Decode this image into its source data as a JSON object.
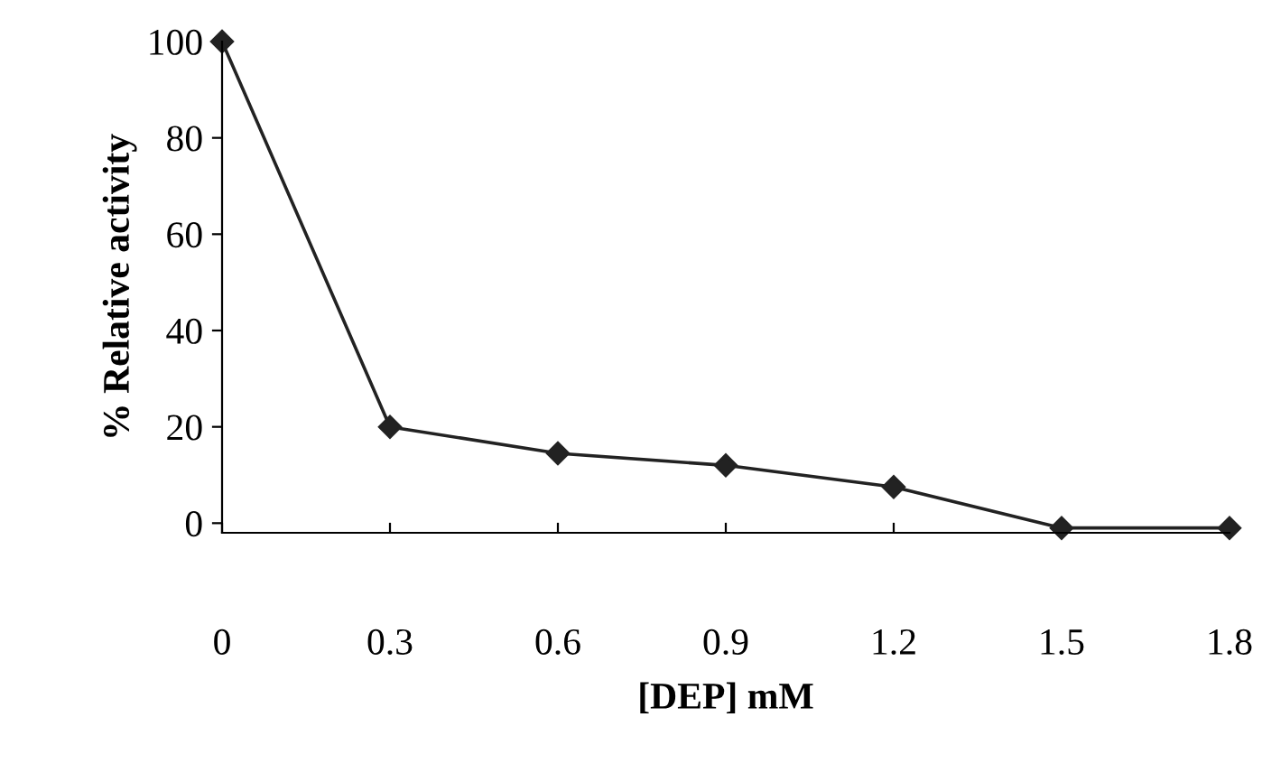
{
  "chart_data": {
    "type": "line",
    "xlabel": "[DEP] mM",
    "ylabel": "% Relative activity",
    "x": [
      0,
      0.3,
      0.6,
      0.9,
      1.2,
      1.5,
      1.8
    ],
    "series": [
      {
        "color": "#222222",
        "values": [
          100,
          20,
          14.5,
          12,
          7.5,
          -1,
          -1
        ]
      }
    ],
    "xlim": [
      0,
      1.8
    ],
    "xticks": [
      0,
      0.3,
      0.6,
      0.9,
      1.2,
      1.5,
      1.8
    ],
    "ylim": [
      -2,
      100
    ],
    "yticks": [
      0,
      20,
      40,
      60,
      80,
      100
    ],
    "marker": "diamond",
    "line_style": "solid",
    "grid": false,
    "legend": false
  }
}
